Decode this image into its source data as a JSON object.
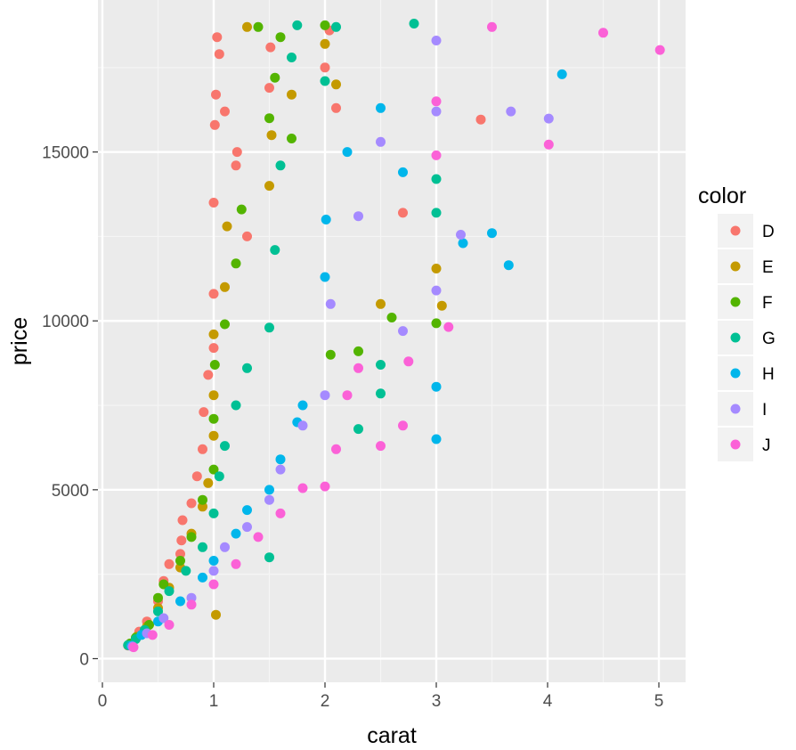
{
  "chart_data": {
    "type": "scatter",
    "title": "",
    "xlabel": "carat",
    "ylabel": "price",
    "xlim": [
      -0.04,
      5.24
    ],
    "ylim": [
      -700,
      19500
    ],
    "x_ticks": [
      0,
      1,
      2,
      3,
      4,
      5
    ],
    "x_tick_labels": [
      "0",
      "1",
      "2",
      "3",
      "4",
      "5"
    ],
    "y_ticks": [
      0,
      5000,
      10000,
      15000
    ],
    "y_tick_labels": [
      "0",
      "5000",
      "10000",
      "15000"
    ],
    "grid": true,
    "legend": {
      "title": "color",
      "position": "right",
      "entries": [
        {
          "label": "D",
          "color": "#F8766D"
        },
        {
          "label": "E",
          "color": "#C49A00"
        },
        {
          "label": "F",
          "color": "#53B400"
        },
        {
          "label": "G",
          "color": "#00C094"
        },
        {
          "label": "H",
          "color": "#00B6EB"
        },
        {
          "label": "I",
          "color": "#A58AFF"
        },
        {
          "label": "J",
          "color": "#FB61D7"
        }
      ]
    },
    "series": [
      {
        "name": "D",
        "color": "#F8766D",
        "points": [
          [
            0.23,
            390
          ],
          [
            0.3,
            600
          ],
          [
            0.33,
            800
          ],
          [
            0.4,
            1100
          ],
          [
            0.5,
            1700
          ],
          [
            0.55,
            2300
          ],
          [
            0.6,
            2800
          ],
          [
            0.7,
            3100
          ],
          [
            0.71,
            3500
          ],
          [
            0.72,
            4100
          ],
          [
            0.8,
            4600
          ],
          [
            0.85,
            5400
          ],
          [
            0.9,
            6200
          ],
          [
            0.91,
            7300
          ],
          [
            0.95,
            8400
          ],
          [
            1.0,
            9200
          ],
          [
            1.0,
            10800
          ],
          [
            1.0,
            13500
          ],
          [
            1.01,
            15800
          ],
          [
            1.02,
            16700
          ],
          [
            1.03,
            18400
          ],
          [
            1.05,
            17900
          ],
          [
            1.1,
            16200
          ],
          [
            1.2,
            14600
          ],
          [
            1.21,
            15000
          ],
          [
            1.3,
            12500
          ],
          [
            1.5,
            16900
          ],
          [
            1.51,
            18100
          ],
          [
            2.0,
            17500
          ],
          [
            2.04,
            18600
          ],
          [
            2.1,
            16300
          ],
          [
            2.7,
            13200
          ],
          [
            3.4,
            15960
          ]
        ]
      },
      {
        "name": "E",
        "color": "#C49A00",
        "points": [
          [
            0.24,
            420
          ],
          [
            0.31,
            650
          ],
          [
            0.4,
            950
          ],
          [
            0.5,
            1500
          ],
          [
            0.6,
            2100
          ],
          [
            0.7,
            2700
          ],
          [
            0.8,
            3700
          ],
          [
            0.9,
            4500
          ],
          [
            0.95,
            5200
          ],
          [
            1.0,
            6600
          ],
          [
            1.0,
            7800
          ],
          [
            1.0,
            9600
          ],
          [
            1.02,
            1300
          ],
          [
            1.1,
            11000
          ],
          [
            1.12,
            12800
          ],
          [
            1.3,
            18700
          ],
          [
            1.5,
            14000
          ],
          [
            1.52,
            15500
          ],
          [
            1.7,
            16700
          ],
          [
            2.0,
            18200
          ],
          [
            2.1,
            17000
          ],
          [
            2.5,
            10500
          ],
          [
            3.0,
            11550
          ],
          [
            3.05,
            10450
          ]
        ]
      },
      {
        "name": "F",
        "color": "#53B400",
        "points": [
          [
            0.25,
            450
          ],
          [
            0.3,
            620
          ],
          [
            0.42,
            1000
          ],
          [
            0.5,
            1800
          ],
          [
            0.55,
            2200
          ],
          [
            0.7,
            2900
          ],
          [
            0.8,
            3600
          ],
          [
            0.9,
            4700
          ],
          [
            1.0,
            5600
          ],
          [
            1.0,
            7100
          ],
          [
            1.01,
            8700
          ],
          [
            1.1,
            9900
          ],
          [
            1.2,
            11700
          ],
          [
            1.25,
            13300
          ],
          [
            1.4,
            18700
          ],
          [
            1.5,
            16000
          ],
          [
            1.55,
            17200
          ],
          [
            1.6,
            18400
          ],
          [
            1.7,
            15400
          ],
          [
            2.0,
            18750
          ],
          [
            2.05,
            9000
          ],
          [
            2.3,
            9100
          ],
          [
            2.6,
            10100
          ],
          [
            3.0,
            9930
          ]
        ]
      },
      {
        "name": "G",
        "color": "#00C094",
        "points": [
          [
            0.23,
            400
          ],
          [
            0.3,
            580
          ],
          [
            0.38,
            850
          ],
          [
            0.5,
            1400
          ],
          [
            0.6,
            2000
          ],
          [
            0.75,
            2600
          ],
          [
            0.9,
            3300
          ],
          [
            1.0,
            4300
          ],
          [
            1.05,
            5400
          ],
          [
            1.1,
            6300
          ],
          [
            1.2,
            7500
          ],
          [
            1.3,
            8600
          ],
          [
            1.5,
            3000
          ],
          [
            1.5,
            9800
          ],
          [
            1.55,
            12100
          ],
          [
            1.6,
            14600
          ],
          [
            1.7,
            17800
          ],
          [
            1.75,
            18750
          ],
          [
            2.0,
            17100
          ],
          [
            2.1,
            18700
          ],
          [
            2.3,
            6800
          ],
          [
            2.5,
            8700
          ],
          [
            2.5,
            7850
          ],
          [
            2.8,
            18800
          ],
          [
            3.0,
            14200
          ],
          [
            3.0,
            13200
          ]
        ]
      },
      {
        "name": "H",
        "color": "#00B6EB",
        "points": [
          [
            0.26,
            380
          ],
          [
            0.35,
            700
          ],
          [
            0.5,
            1100
          ],
          [
            0.7,
            1700
          ],
          [
            0.9,
            2400
          ],
          [
            1.0,
            2900
          ],
          [
            1.2,
            3700
          ],
          [
            1.3,
            4400
          ],
          [
            1.5,
            5000
          ],
          [
            1.6,
            5900
          ],
          [
            1.75,
            7000
          ],
          [
            1.8,
            7500
          ],
          [
            2.0,
            11300
          ],
          [
            2.01,
            13000
          ],
          [
            2.2,
            15000
          ],
          [
            2.5,
            16300
          ],
          [
            2.7,
            14400
          ],
          [
            3.0,
            6500
          ],
          [
            3.0,
            8050
          ],
          [
            3.24,
            12300
          ],
          [
            3.5,
            12600
          ],
          [
            3.65,
            11650
          ],
          [
            4.13,
            17300
          ]
        ]
      },
      {
        "name": "I",
        "color": "#A58AFF",
        "points": [
          [
            0.27,
            360
          ],
          [
            0.4,
            750
          ],
          [
            0.55,
            1200
          ],
          [
            0.8,
            1800
          ],
          [
            1.0,
            2600
          ],
          [
            1.1,
            3300
          ],
          [
            1.3,
            3900
          ],
          [
            1.5,
            4700
          ],
          [
            1.6,
            5600
          ],
          [
            1.8,
            6900
          ],
          [
            2.0,
            7800
          ],
          [
            2.05,
            10500
          ],
          [
            2.3,
            13100
          ],
          [
            2.5,
            15300
          ],
          [
            2.7,
            9700
          ],
          [
            3.0,
            10900
          ],
          [
            3.0,
            16200
          ],
          [
            3.0,
            18300
          ],
          [
            3.22,
            12550
          ],
          [
            3.67,
            16200
          ],
          [
            4.01,
            15990
          ]
        ]
      },
      {
        "name": "J",
        "color": "#FB61D7",
        "points": [
          [
            0.28,
            340
          ],
          [
            0.45,
            700
          ],
          [
            0.6,
            1000
          ],
          [
            0.8,
            1600
          ],
          [
            1.0,
            2200
          ],
          [
            1.2,
            2800
          ],
          [
            1.4,
            3600
          ],
          [
            1.6,
            4300
          ],
          [
            1.8,
            5050
          ],
          [
            2.0,
            5100
          ],
          [
            2.1,
            6200
          ],
          [
            2.2,
            7800
          ],
          [
            2.3,
            8600
          ],
          [
            2.5,
            6300
          ],
          [
            2.7,
            6900
          ],
          [
            2.75,
            8800
          ],
          [
            3.0,
            14900
          ],
          [
            3.0,
            16500
          ],
          [
            3.11,
            9820
          ],
          [
            3.5,
            18700
          ],
          [
            4.01,
            15220
          ],
          [
            4.5,
            18530
          ],
          [
            5.01,
            18020
          ]
        ]
      }
    ]
  }
}
